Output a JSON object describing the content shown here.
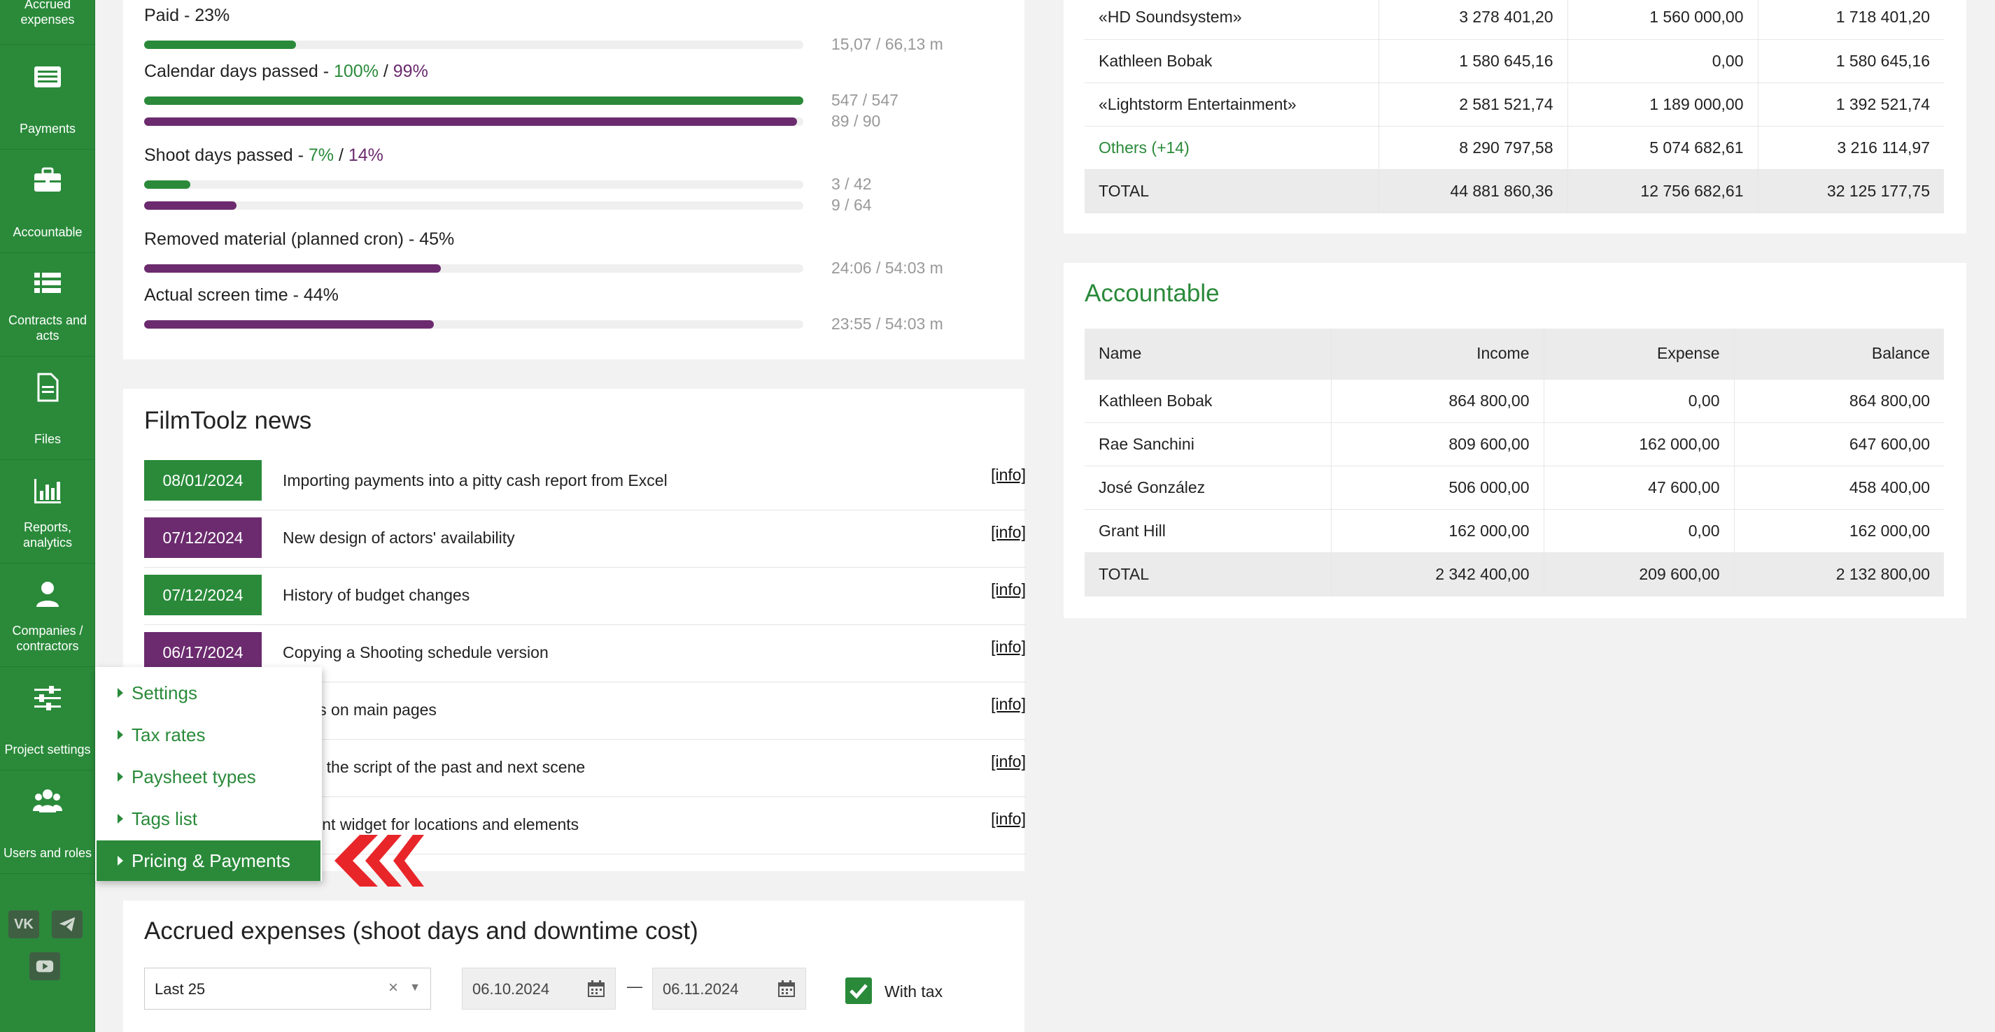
{
  "sidebar": {
    "items": [
      {
        "label": "Accrued expenses",
        "icon": "coins-icon"
      },
      {
        "label": "Payments",
        "icon": "payments-icon"
      },
      {
        "label": "Accountable",
        "icon": "briefcase-icon"
      },
      {
        "label": "Contracts and acts",
        "icon": "list-icon"
      },
      {
        "label": "Files",
        "icon": "file-icon"
      },
      {
        "label": "Reports, analytics",
        "icon": "chart-icon"
      },
      {
        "label": "Companies / contractors",
        "icon": "person-icon"
      },
      {
        "label": "Project settings",
        "icon": "sliders-icon"
      },
      {
        "label": "Users and roles",
        "icon": "users-icon"
      }
    ],
    "social": {
      "vk": "VK",
      "telegram": "telegram-icon",
      "youtube": "youtube-icon"
    }
  },
  "progress": {
    "paid": {
      "title": "Paid - 23%",
      "value_text": "15,07 / 66,13 m",
      "fraction": 0.23
    },
    "calendar": {
      "title_prefix": "Calendar days passed - ",
      "green": "100%",
      "sep": " / ",
      "purple": "99%",
      "green_text": "547 / 547",
      "purple_text": "89 / 90",
      "green_fraction": 1.0,
      "purple_fraction": 0.99
    },
    "shoot": {
      "title_prefix": "Shoot days passed - ",
      "green": "7%",
      "sep": " / ",
      "purple": "14%",
      "green_text": "3 / 42",
      "purple_text": "9 / 64",
      "green_fraction": 0.07,
      "purple_fraction": 0.14
    },
    "removed": {
      "title": "Removed material (planned cron) - 45%",
      "value_text": "24:06 / 54:03 m",
      "fraction": 0.45
    },
    "screen": {
      "title": "Actual screen time - 44%",
      "value_text": "23:55 / 54:03 m",
      "fraction": 0.44
    }
  },
  "news": {
    "title": "FilmToolz news",
    "info_label": "[info]",
    "items": [
      {
        "date": "08/01/2024",
        "text": "Importing payments into a pitty cash report from Excel",
        "color": "green"
      },
      {
        "date": "07/12/2024",
        "text": "New design of actors' availability",
        "color": "purple"
      },
      {
        "date": "07/12/2024",
        "text": "History of budget changes",
        "color": "green"
      },
      {
        "date": "06/17/2024",
        "text": "Copying a Shooting schedule version",
        "color": "purple"
      },
      {
        "date": "",
        "text": "ments on main pages",
        "color": "green"
      },
      {
        "date": "",
        "text": "utting the script of the past and next scene",
        "color": "green"
      },
      {
        "date": "",
        "text": "oyment widget for locations and elements",
        "color": "green"
      }
    ]
  },
  "accrued": {
    "title": "Accrued expenses (shoot days and downtime cost)",
    "period_select": "Last 25",
    "clear_symbol": "×",
    "date_from": "06.10.2024",
    "date_dash": "—",
    "date_to": "06.11.2024",
    "with_tax_label": "With tax",
    "with_tax_checked": true
  },
  "contractors_table": {
    "rows": [
      {
        "name": "«HD Soundsystem»",
        "c1": "3 278 401,20",
        "c2": "1 560 000,00",
        "c3": "1 718 401,20"
      },
      {
        "name": "Kathleen Bobak",
        "c1": "1 580 645,16",
        "c2": "0,00",
        "c3": "1 580 645,16"
      },
      {
        "name": "«Lightstorm Entertainment»",
        "c1": "2 581 521,74",
        "c2": "1 189 000,00",
        "c3": "1 392 521,74"
      },
      {
        "name": "Others (+14)",
        "c1": "8 290 797,58",
        "c2": "5 074 682,61",
        "c3": "3 216 114,97"
      }
    ],
    "total": {
      "name": "TOTAL",
      "c1": "44 881 860,36",
      "c2": "12 756 682,61",
      "c3": "32 125 177,75"
    }
  },
  "accountable": {
    "title": "Accountable",
    "headers": {
      "name": "Name",
      "income": "Income",
      "expense": "Expense",
      "balance": "Balance"
    },
    "rows": [
      {
        "name": "Kathleen Bobak",
        "income": "864 800,00",
        "expense": "0,00",
        "balance": "864 800,00"
      },
      {
        "name": "Rae Sanchini",
        "income": "809 600,00",
        "expense": "162 000,00",
        "balance": "647 600,00"
      },
      {
        "name": "José González",
        "income": "506 000,00",
        "expense": "47 600,00",
        "balance": "458 400,00"
      },
      {
        "name": "Grant Hill",
        "income": "162 000,00",
        "expense": "0,00",
        "balance": "162 000,00"
      }
    ],
    "total": {
      "name": "TOTAL",
      "income": "2 342 400,00",
      "expense": "209 600,00",
      "balance": "2 132 800,00"
    }
  },
  "project_menu": {
    "items": [
      "Settings",
      "Tax rates",
      "Paysheet types",
      "Tags list",
      "Pricing & Payments"
    ],
    "active_index": 4
  },
  "colors": {
    "brand_green": "#2a8a3a",
    "brand_purple": "#6b2b6e",
    "pointer_red": "#e8262a"
  }
}
